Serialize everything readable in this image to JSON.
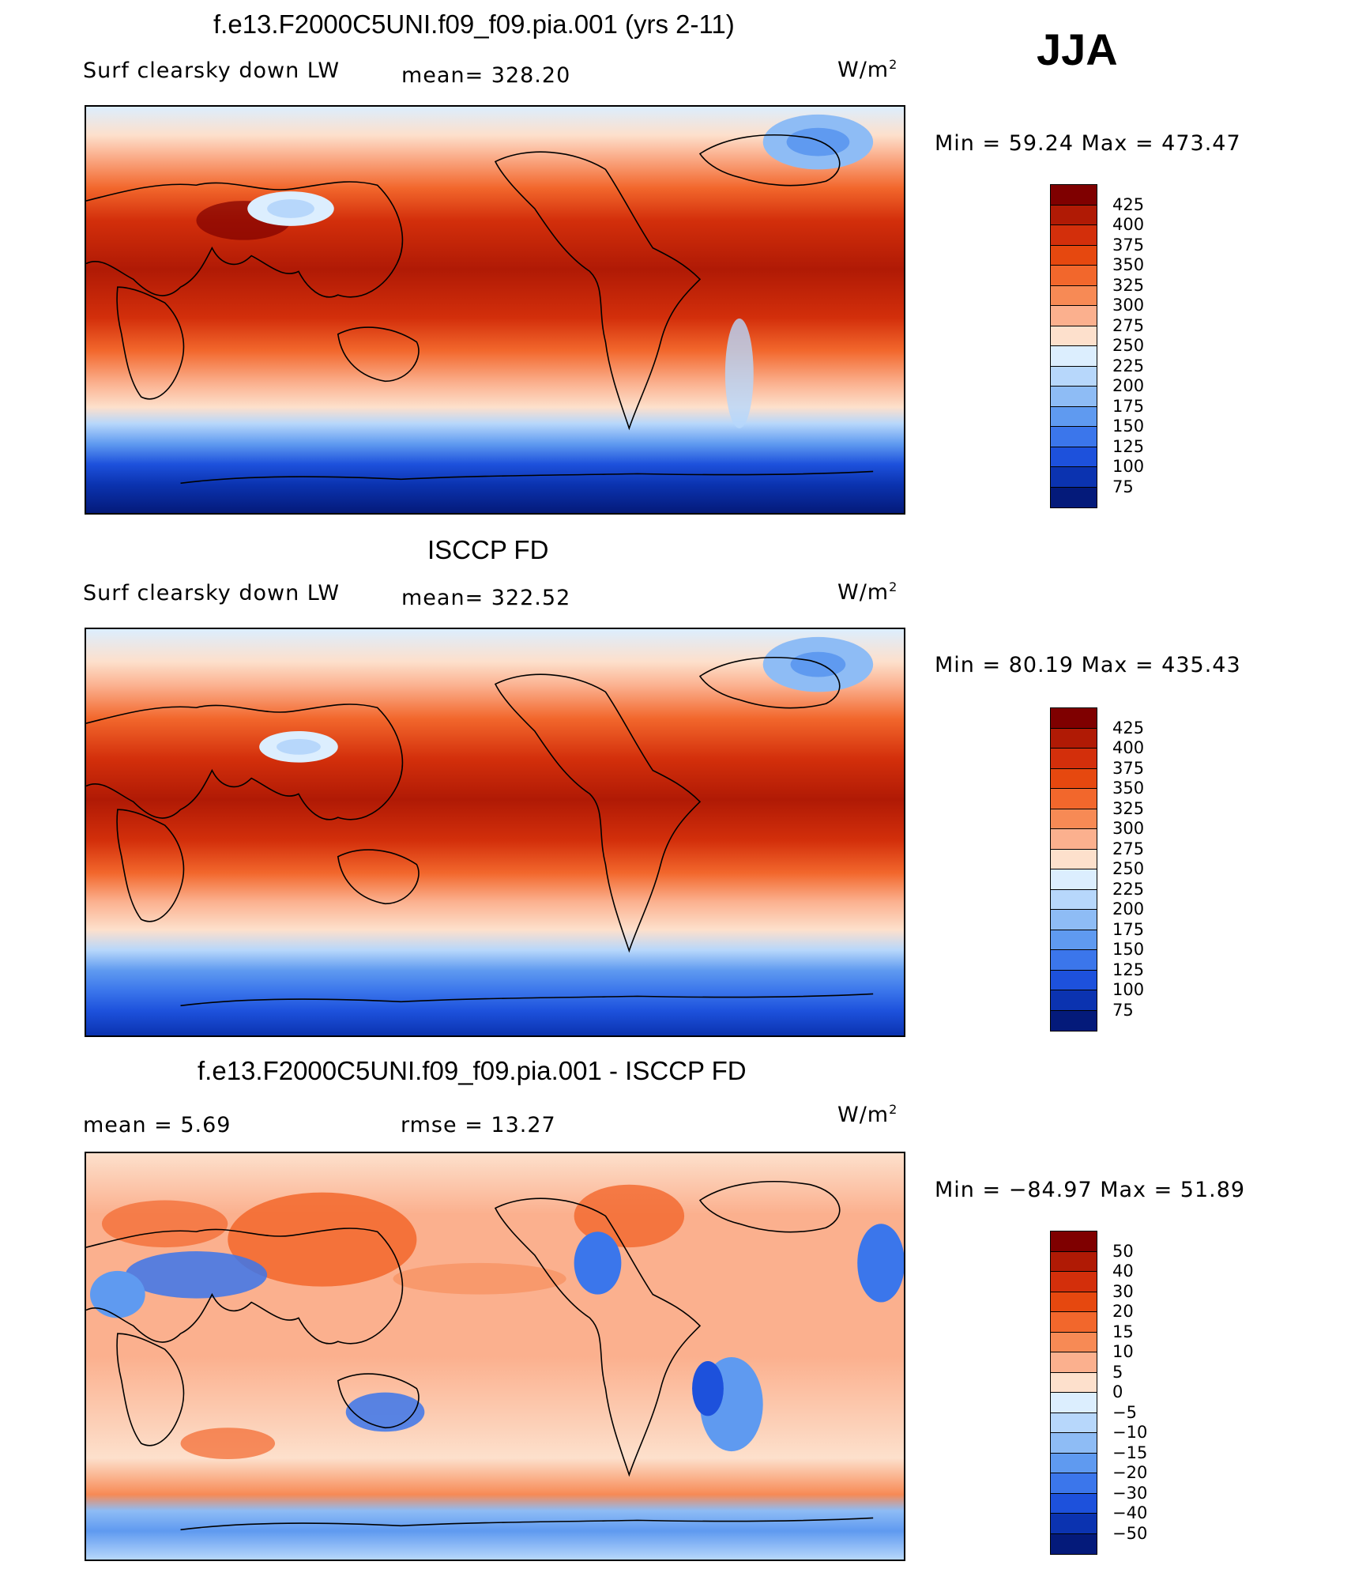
{
  "season": "JJA",
  "units": "W/m",
  "units_sup": "2",
  "panels": [
    {
      "title": "f.e13.F2000C5UNI.f09_f09.pia.001 (yrs 2-11)",
      "variable": "Surf clearsky down LW",
      "mean_label": "mean= 328.20",
      "minmax_label": "Min =   59.24  Max  =  473.47"
    },
    {
      "title": "ISCCP FD",
      "variable": "Surf clearsky down LW",
      "mean_label": "mean= 322.52",
      "minmax_label": "Min =   80.19  Max  =  435.43"
    },
    {
      "title": "f.e13.F2000C5UNI.f09_f09.pia.001 - ISCCP FD",
      "mean_label": "mean =     5.69",
      "rmse_label": "rmse =    13.27",
      "minmax_label": "Min  = −84.97  Max  =    51.89"
    }
  ],
  "colorbars": {
    "abs_levels": [
      "425",
      "400",
      "375",
      "350",
      "325",
      "300",
      "275",
      "250",
      "225",
      "200",
      "175",
      "150",
      "125",
      "100",
      "75"
    ],
    "abs_colors": [
      "#7f0000",
      "#b01a05",
      "#d32f0b",
      "#e6480f",
      "#f2672c",
      "#f78a55",
      "#fbb08e",
      "#fde0cc",
      "#dceefe",
      "#b7d7fb",
      "#8ebcf5",
      "#5f9af0",
      "#3b76eb",
      "#1d51dc",
      "#0b33b0",
      "#041a7a"
    ],
    "diff_levels": [
      "50",
      "40",
      "30",
      "20",
      "15",
      "10",
      "5",
      "0",
      "−5",
      "−10",
      "−15",
      "−20",
      "−30",
      "−40",
      "−50"
    ],
    "diff_colors": [
      "#7f0000",
      "#b01a05",
      "#d32f0b",
      "#e6480f",
      "#f2672c",
      "#f78a55",
      "#fbb08e",
      "#fde0cc",
      "#dceefe",
      "#b7d7fb",
      "#8ebcf5",
      "#5f9af0",
      "#3b76eb",
      "#1d51dc",
      "#0b33b0",
      "#041a7a"
    ]
  }
}
